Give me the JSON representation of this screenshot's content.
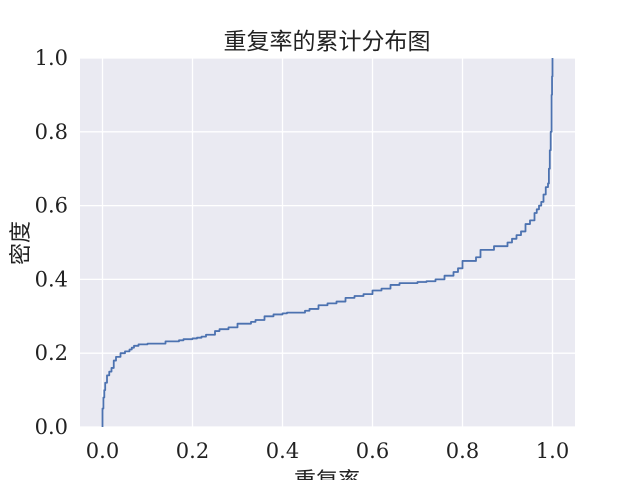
{
  "chart_data": {
    "type": "line",
    "title": "重复率的累计分布图",
    "xlabel": "重复率",
    "ylabel": "密度",
    "xlim": [
      -0.05,
      1.05
    ],
    "ylim": [
      0.0,
      1.0
    ],
    "x_ticks": [
      0.0,
      0.2,
      0.4,
      0.6,
      0.8,
      1.0
    ],
    "x_tick_labels": [
      "0.0",
      "0.2",
      "0.4",
      "0.6",
      "0.8",
      "1.0"
    ],
    "y_ticks": [
      0.0,
      0.2,
      0.4,
      0.6,
      0.8,
      1.0
    ],
    "y_tick_labels": [
      "0.0",
      "0.2",
      "0.4",
      "0.6",
      "0.8",
      "1.0"
    ],
    "grid": true,
    "legend": "none",
    "colors": {
      "background": "#EAEAF2",
      "grid": "#FFFFFF",
      "line": "#4C72B0",
      "text": "#222222"
    },
    "series": [
      {
        "x": [
          0.0,
          0.0,
          0.002,
          0.004,
          0.006,
          0.01,
          0.015,
          0.02,
          0.025,
          0.03,
          0.04,
          0.05,
          0.06,
          0.065,
          0.07,
          0.08,
          0.1,
          0.14,
          0.17,
          0.18,
          0.2,
          0.21,
          0.22,
          0.23,
          0.25,
          0.26,
          0.28,
          0.3,
          0.33,
          0.34,
          0.36,
          0.38,
          0.4,
          0.41,
          0.45,
          0.46,
          0.48,
          0.5,
          0.52,
          0.54,
          0.56,
          0.58,
          0.6,
          0.62,
          0.64,
          0.66,
          0.7,
          0.72,
          0.74,
          0.76,
          0.78,
          0.79,
          0.8,
          0.83,
          0.84,
          0.87,
          0.9,
          0.91,
          0.92,
          0.93,
          0.94,
          0.95,
          0.96,
          0.965,
          0.97,
          0.975,
          0.98,
          0.985,
          0.99,
          0.992,
          0.994,
          0.996,
          0.998,
          0.999,
          1.0,
          1.0
        ],
        "y": [
          0.0,
          0.05,
          0.08,
          0.1,
          0.12,
          0.14,
          0.15,
          0.16,
          0.18,
          0.19,
          0.2,
          0.205,
          0.21,
          0.215,
          0.22,
          0.224,
          0.226,
          0.232,
          0.235,
          0.238,
          0.24,
          0.242,
          0.245,
          0.25,
          0.26,
          0.265,
          0.27,
          0.28,
          0.285,
          0.29,
          0.3,
          0.305,
          0.308,
          0.31,
          0.315,
          0.32,
          0.33,
          0.335,
          0.34,
          0.35,
          0.355,
          0.36,
          0.37,
          0.375,
          0.385,
          0.39,
          0.393,
          0.395,
          0.4,
          0.41,
          0.42,
          0.43,
          0.45,
          0.46,
          0.48,
          0.49,
          0.5,
          0.51,
          0.52,
          0.53,
          0.55,
          0.56,
          0.58,
          0.59,
          0.6,
          0.61,
          0.63,
          0.65,
          0.66,
          0.7,
          0.75,
          0.8,
          0.9,
          0.95,
          1.0,
          1.0
        ]
      }
    ]
  }
}
